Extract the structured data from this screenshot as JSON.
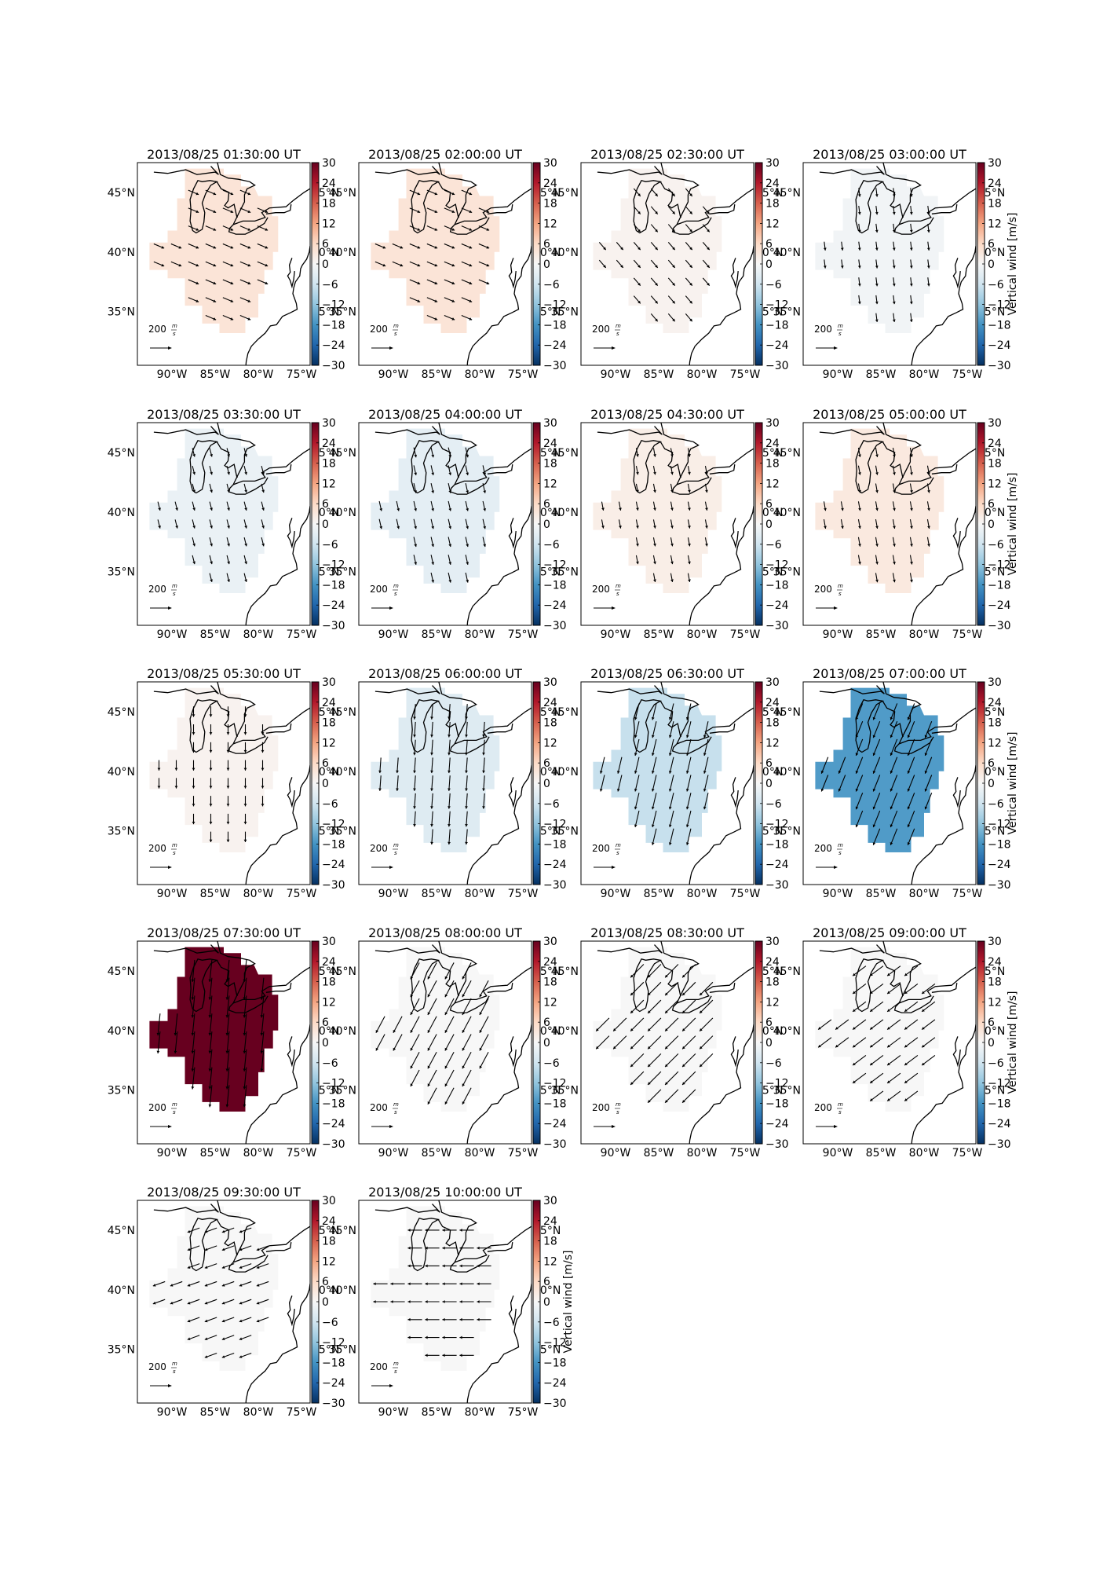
{
  "figure": {
    "panel_titles": [
      "2013/08/25 01:30:00 UT",
      "2013/08/25 02:00:00 UT",
      "2013/08/25 02:30:00 UT",
      "2013/08/25 03:00:00 UT",
      "2013/08/25 03:30:00 UT",
      "2013/08/25 04:00:00 UT",
      "2013/08/25 04:30:00 UT",
      "2013/08/25 05:00:00 UT",
      "2013/08/25 05:30:00 UT",
      "2013/08/25 06:00:00 UT",
      "2013/08/25 06:30:00 UT",
      "2013/08/25 07:00:00 UT",
      "2013/08/25 07:30:00 UT",
      "2013/08/25 08:00:00 UT",
      "2013/08/25 08:30:00 UT",
      "2013/08/25 09:00:00 UT",
      "2013/08/25 09:30:00 UT",
      "2013/08/25 10:00:00 UT"
    ],
    "colorbar_label": "Vertical wind [m/s]",
    "colorbar_ticks": [
      "30",
      "24",
      "18",
      "12",
      "6",
      "0",
      "−6",
      "−12",
      "−18",
      "−24",
      "−30"
    ],
    "x_tick_labels": [
      "90°W",
      "85°W",
      "80°W",
      "75°W"
    ],
    "y_tick_labels": [
      "45°N",
      "40°N",
      "35°N"
    ],
    "scale_label": "200",
    "scale_unit_num": "m",
    "scale_unit_den": "s",
    "colors": {
      "cmap_top": "#67001f",
      "cmap_mid": "#f7f7f7",
      "cmap_bottom": "#053061"
    }
  },
  "chart_data": {
    "type": "heatmap",
    "colormap": "RdBu_r",
    "vmin": -30,
    "vmax": 30,
    "xlim": [
      -94,
      -74
    ],
    "ylim": [
      30.5,
      47.5
    ],
    "panels": [
      {
        "time": "2013/08/25 01:30:00 UT",
        "vertical_wind": 4,
        "vector": [
          95,
          -40
        ]
      },
      {
        "time": "2013/08/25 02:00:00 UT",
        "vertical_wind": 4,
        "vector": [
          95,
          -40
        ]
      },
      {
        "time": "2013/08/25 02:30:00 UT",
        "vertical_wind": 1,
        "vector": [
          60,
          -70
        ]
      },
      {
        "time": "2013/08/25 03:00:00 UT",
        "vertical_wind": -1,
        "vector": [
          10,
          -80
        ]
      },
      {
        "time": "2013/08/25 03:30:00 UT",
        "vertical_wind": -2,
        "vector": [
          20,
          -80
        ]
      },
      {
        "time": "2013/08/25 04:00:00 UT",
        "vertical_wind": -3,
        "vector": [
          20,
          -90
        ]
      },
      {
        "time": "2013/08/25 04:30:00 UT",
        "vertical_wind": 2,
        "vector": [
          15,
          -80
        ]
      },
      {
        "time": "2013/08/25 05:00:00 UT",
        "vertical_wind": 3,
        "vector": [
          15,
          -85
        ]
      },
      {
        "time": "2013/08/25 05:30:00 UT",
        "vertical_wind": 1,
        "vector": [
          0,
          -95
        ]
      },
      {
        "time": "2013/08/25 06:00:00 UT",
        "vertical_wind": -4,
        "vector": [
          -10,
          -140
        ]
      },
      {
        "time": "2013/08/25 06:30:00 UT",
        "vertical_wind": -7,
        "vector": [
          -35,
          -150
        ]
      },
      {
        "time": "2013/08/25 07:00:00 UT",
        "vertical_wind": -17,
        "vector": [
          -60,
          -150
        ]
      },
      {
        "time": "2013/08/25 07:30:00 UT",
        "vertical_wind": 30,
        "vector": [
          -20,
          -200
        ]
      },
      {
        "time": "2013/08/25 08:00:00 UT",
        "vertical_wind": 0,
        "vector": [
          -80,
          -150
        ]
      },
      {
        "time": "2013/08/25 08:30:00 UT",
        "vertical_wind": 0,
        "vector": [
          -120,
          -120
        ]
      },
      {
        "time": "2013/08/25 09:00:00 UT",
        "vertical_wind": 0,
        "vector": [
          -120,
          -90
        ]
      },
      {
        "time": "2013/08/25 09:30:00 UT",
        "vertical_wind": 0,
        "vector": [
          -110,
          -40
        ]
      },
      {
        "time": "2013/08/25 10:00:00 UT",
        "vertical_wind": 0,
        "vector": [
          -130,
          0
        ]
      }
    ]
  }
}
